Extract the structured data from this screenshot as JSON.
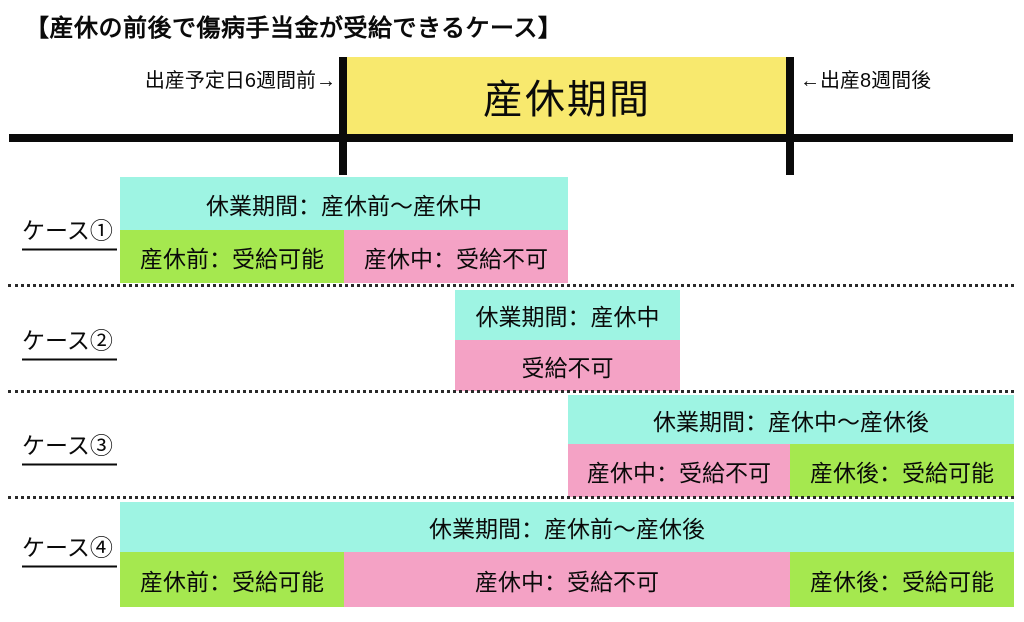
{
  "title": "【産休の前後で傷病手当金が受給できるケース】",
  "colors": {
    "yellow": "#F8E96E",
    "cyan": "#9EF4E3",
    "green": "#A5E84F",
    "pink": "#F4A2C5",
    "line": "#0A0A0A"
  },
  "timeline": {
    "left_label": "出産予定日6週間前→",
    "right_label": "←出産8週間後",
    "period_label": "産休期間"
  },
  "cases": [
    {
      "label": "ケース①",
      "leave_label": "休業期間：産休前〜産休中",
      "segments": [
        {
          "text": "産休前：受給可能",
          "color": "green"
        },
        {
          "text": "産休中：受給不可",
          "color": "pink"
        }
      ]
    },
    {
      "label": "ケース②",
      "leave_label": "休業期間：産休中",
      "segments": [
        {
          "text": "受給不可",
          "color": "pink"
        }
      ]
    },
    {
      "label": "ケース③",
      "leave_label": "休業期間：産休中〜産休後",
      "segments": [
        {
          "text": "産休中：受給不可",
          "color": "pink"
        },
        {
          "text": "産休後：受給可能",
          "color": "green"
        }
      ]
    },
    {
      "label": "ケース④",
      "leave_label": "休業期間：産休前〜産休後",
      "segments": [
        {
          "text": "産休前：受給可能",
          "color": "green"
        },
        {
          "text": "産休中：受給不可",
          "color": "pink"
        },
        {
          "text": "産休後：受給可能",
          "color": "green"
        }
      ]
    }
  ]
}
